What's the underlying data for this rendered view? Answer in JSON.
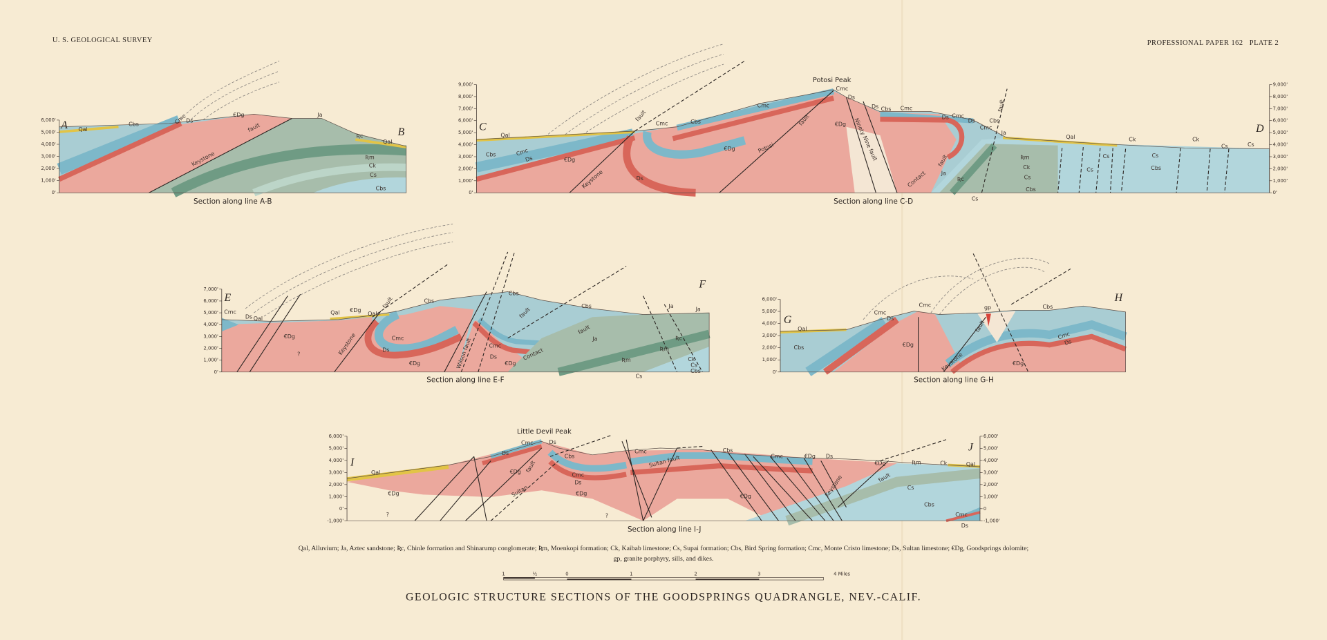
{
  "header": {
    "left": "U. S. GEOLOGICAL SURVEY",
    "right": "PROFESSIONAL PAPER 162   PLATE 2"
  },
  "sections": [
    {
      "end_left": "A",
      "end_right": "B",
      "caption": "Section along line A-B",
      "elevations_left": [
        "6,000'",
        "5,000'",
        "4,000'",
        "3,000'",
        "2,000'",
        "1,000'",
        "0'"
      ],
      "labels": [
        "Qal",
        "Cbs",
        "Cmc",
        "Ds",
        "€Dg",
        "Ja",
        "Ʀc",
        "Qal",
        "Keystone",
        "fault",
        "Ʀm",
        "Ck",
        "Cs",
        "Cbs"
      ]
    },
    {
      "end_left": "C",
      "end_right": "D",
      "caption": "Section along line C-D",
      "peak": "Potosi Peak",
      "elevations_left": [
        "9,000'",
        "8,000'",
        "7,000'",
        "6,000'",
        "5,000'",
        "4,000'",
        "3,000'",
        "2,000'",
        "1,000'",
        "0'"
      ],
      "elevations_right": [
        "9,000'",
        "8,000'",
        "7,000'",
        "6,000'",
        "5,000'",
        "4,000'",
        "3,000'",
        "2,000'",
        "1,000'",
        "0'"
      ],
      "labels": [
        "Qal",
        "Cbs",
        "Cmc",
        "Ds",
        "€Dg",
        "Keystone",
        "fault",
        "Cmc",
        "Cbs",
        "Ds",
        "€Dg",
        "Potosi",
        "fault",
        "Cmc",
        "Cmc",
        "Ds",
        "Ds",
        "Cbs",
        "Cmc",
        "€Dg",
        "Ninety Nine fault",
        "Ds",
        "Cmc",
        "Ds",
        "Cmc",
        "Cbs",
        "Ja",
        "fault",
        "Contact",
        "Ja",
        "Ʀc",
        "Ʀm",
        "Ck",
        "Cs",
        "Cbs",
        "Qal",
        "Ck",
        "Ck",
        "Cs",
        "Cs",
        "Cs",
        "Cs",
        "Cs",
        "Cbs",
        "Cs",
        "fault"
      ]
    },
    {
      "end_left": "E",
      "end_right": "F",
      "caption": "Section along line E-F",
      "elevations_left": [
        "7,000'",
        "6,000'",
        "5,000'",
        "4,000'",
        "3,000'",
        "2,000'",
        "1,000'",
        "0'"
      ],
      "labels": [
        "Cmc",
        "Ds",
        "Qal",
        "Qal",
        "€Dg",
        "Qal",
        "fault",
        "Keystone",
        "€Dg",
        "?",
        "Cbs",
        "Cbs",
        "Cmc",
        "Ds",
        "€Dg",
        "Wilson fault",
        "Cmc",
        "Ds",
        "€Dg",
        "Contact",
        "fault",
        "fault",
        "Cbs",
        "Ja",
        "Ja",
        "Ja",
        "Ʀc",
        "Ʀm",
        "Ʀm",
        "Cs",
        "Ck",
        "Cs",
        "Cbs"
      ]
    },
    {
      "end_left": "G",
      "end_right": "H",
      "caption": "Section along line G-H",
      "elevations_left": [
        "6,000'",
        "5,000'",
        "4,000'",
        "3,000'",
        "2,000'",
        "1,000'",
        "0'"
      ],
      "labels": [
        "Qal",
        "Cbs",
        "Cmc",
        "Ds",
        "Cmc",
        "€Dg",
        "gp",
        "Cbs",
        "fault",
        "Keystone",
        "Cmc",
        "Ds",
        "€Dg"
      ]
    },
    {
      "end_left": "I",
      "end_right": "J",
      "caption": "Section along line I-J",
      "peak": "Little Devil Peak",
      "elevations_left": [
        "6,000'",
        "5,000'",
        "4,000'",
        "3,000'",
        "2,000'",
        "1,000'",
        "0'",
        "-1,000'"
      ],
      "elevations_right": [
        "6,000'",
        "5,000'",
        "4,000'",
        "3,000'",
        "2,000'",
        "1,000'",
        "0",
        "-1,000'"
      ],
      "labels": [
        "Cmc",
        "Ds",
        "Ds",
        "Qal",
        "€Dg",
        "?",
        "€Dg",
        "fault",
        "Sultan",
        "Cbs",
        "Cmc",
        "Ds",
        "€Dg",
        "?",
        "Cmc",
        "Sultan fault",
        "Cbs",
        "Cmc",
        "€Dg",
        "Ds",
        "€Dg",
        "€Dg",
        "Keystone",
        "fault",
        "Ʀm",
        "Ck",
        "Qal",
        "Cs",
        "Cbs",
        "Cmc",
        "Ds"
      ]
    }
  ],
  "legend": {
    "line1": "Qal, Alluvium; Ja, Aztec sandstone; Ʀc, Chinle formation and Shinarump conglomerate; Ʀm, Moenkopi formation; Ck, Kaibab limestone; Cs, Supai formation; Cbs, Bird Spring formation; Cmc, Monte Cristo limestone; Ds, Sultan limestone; €Dg, Goodsprings dolomite;",
    "line2": "gp, granite porphyry, sills, and dikes."
  },
  "scale": {
    "labels": [
      "1",
      "½",
      "0",
      "1",
      "2",
      "3",
      "4 Miles"
    ]
  },
  "title": "GEOLOGIC STRUCTURE SECTIONS OF THE GOODSPRINGS QUADRANGLE, NEV.-CALIF."
}
